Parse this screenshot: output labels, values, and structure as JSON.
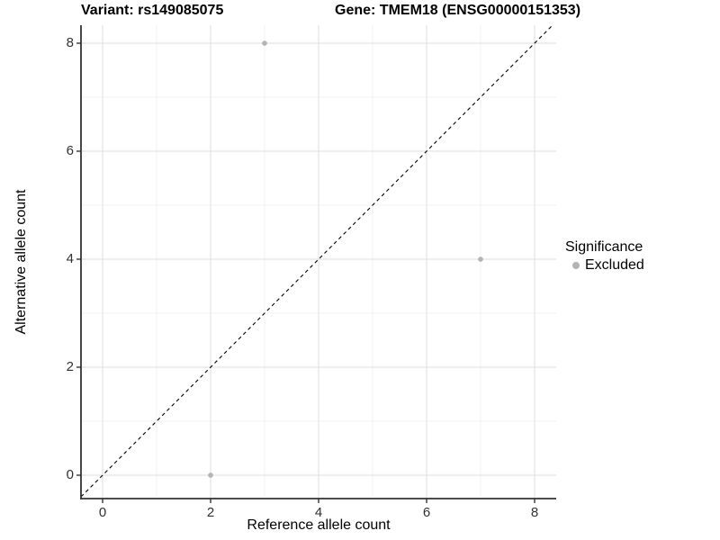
{
  "chart_data": {
    "type": "scatter",
    "title_left": "Variant: rs149085075",
    "title_right": "Gene: TMEM18 (ENSG00000151353)",
    "xlabel": "Reference allele count",
    "ylabel": "Alternative allele count",
    "xlim": [
      -0.4,
      8.4
    ],
    "ylim": [
      -0.43,
      8.33
    ],
    "xticks": [
      0,
      2,
      4,
      6,
      8
    ],
    "yticks": [
      0,
      2,
      4,
      6,
      8
    ],
    "xticks_minor": [
      1,
      3,
      5,
      7
    ],
    "yticks_minor": [
      1,
      3,
      5,
      7
    ],
    "grid": "major+minor",
    "series": [
      {
        "name": "Excluded",
        "color": "#b3b3b3",
        "points": [
          {
            "x": 3,
            "y": 8
          },
          {
            "x": 7,
            "y": 4
          },
          {
            "x": 2,
            "y": 0
          }
        ]
      }
    ],
    "reference_line": {
      "type": "identity",
      "equation": "y = x",
      "style": "dashed",
      "color": "#000000"
    },
    "legend": {
      "title": "Significance",
      "position": "right",
      "entries": [
        {
          "label": "Excluded",
          "color": "#b3b3b3"
        }
      ]
    }
  },
  "colors": {
    "background": "#ffffff",
    "grid_major": "#e4e4e4",
    "grid_minor": "#f0f0f0",
    "axis_line": "#333333",
    "tick_mark": "#333333",
    "tick_text": "#303030",
    "point": "#b3b3b3"
  }
}
